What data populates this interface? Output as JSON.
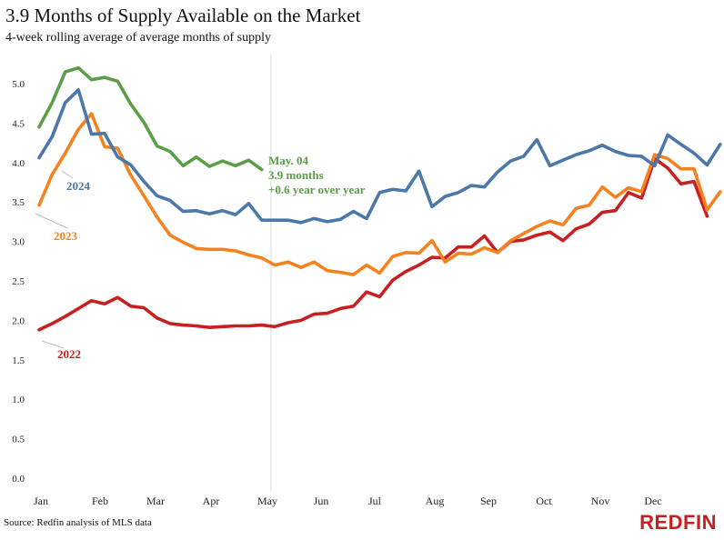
{
  "title": "3.9 Months of Supply Available on the Market",
  "subtitle": "4-week rolling average of average months of supply",
  "source": "Source: Redfin analysis of MLS data",
  "brand": "REDFIN",
  "chart_data": {
    "type": "line",
    "x_tick_labels": [
      "Jan",
      "Feb",
      "Mar",
      "Apr",
      "May",
      "Jun",
      "Jul",
      "Aug",
      "Sep",
      "Oct",
      "Nov",
      "Dec"
    ],
    "y_tick_labels": [
      "0.0",
      "0.5",
      "1.0",
      "1.5",
      "2.0",
      "2.5",
      "3.0",
      "3.5",
      "4.0",
      "4.5",
      "5.0"
    ],
    "ylim": [
      0,
      5.5
    ],
    "xlim": [
      0,
      52
    ],
    "grid": false,
    "reference_line": {
      "x": 17.7
    },
    "annotation": {
      "lines": [
        "May. 04",
        "3.9 months",
        "+0.6 year over year"
      ],
      "color": "#5a9e47"
    },
    "series": [
      {
        "name": "2022",
        "color": "#c82021",
        "label_color": "#c82021",
        "values": [
          1.88,
          1.96,
          2.05,
          2.15,
          2.25,
          2.21,
          2.29,
          2.18,
          2.16,
          2.03,
          1.96,
          1.94,
          1.93,
          1.91,
          1.92,
          1.93,
          1.93,
          1.94,
          1.92,
          1.97,
          2.0,
          2.08,
          2.09,
          2.15,
          2.18,
          2.36,
          2.3,
          2.51,
          2.62,
          2.7,
          2.8,
          2.79,
          2.93,
          2.93,
          3.07,
          2.86,
          3.0,
          3.02,
          3.08,
          3.12,
          3.01,
          3.16,
          3.22,
          3.37,
          3.39,
          3.62,
          3.55,
          4.05,
          3.93,
          3.73,
          3.76,
          3.32
        ]
      },
      {
        "name": "2023",
        "color": "#f58220",
        "label_color": "#f58220",
        "values": [
          3.46,
          3.85,
          4.12,
          4.42,
          4.62,
          4.2,
          4.18,
          3.84,
          3.58,
          3.31,
          3.08,
          2.99,
          2.91,
          2.9,
          2.9,
          2.88,
          2.83,
          2.79,
          2.7,
          2.74,
          2.67,
          2.74,
          2.63,
          2.61,
          2.58,
          2.7,
          2.6,
          2.81,
          2.86,
          2.85,
          3.01,
          2.74,
          2.85,
          2.84,
          2.92,
          2.86,
          3.01,
          3.1,
          3.19,
          3.26,
          3.21,
          3.42,
          3.46,
          3.69,
          3.56,
          3.68,
          3.63,
          4.1,
          4.05,
          3.92,
          3.92,
          3.4,
          3.63
        ]
      },
      {
        "name": "2024",
        "color": "#4b77a9",
        "label_color": "#4b77a9",
        "values": [
          4.06,
          4.33,
          4.76,
          4.92,
          4.36,
          4.37,
          4.07,
          3.97,
          3.76,
          3.58,
          3.52,
          3.38,
          3.39,
          3.35,
          3.39,
          3.34,
          3.48,
          3.27,
          3.27,
          3.27,
          3.24,
          3.29,
          3.25,
          3.28,
          3.38,
          3.29,
          3.62,
          3.66,
          3.64,
          3.89,
          3.44,
          3.57,
          3.62,
          3.71,
          3.69,
          3.88,
          4.02,
          4.08,
          4.29,
          3.96,
          4.03,
          4.1,
          4.15,
          4.22,
          4.14,
          4.09,
          4.08,
          3.96,
          4.35,
          4.23,
          4.12,
          3.97,
          4.23
        ]
      },
      {
        "name": "",
        "color": "#5a9e47",
        "values": [
          4.45,
          4.76,
          5.15,
          5.2,
          5.05,
          5.08,
          5.03,
          4.74,
          4.51,
          4.21,
          4.14,
          3.96,
          4.07,
          3.95,
          4.02,
          3.96,
          4.03,
          3.91
        ]
      }
    ]
  }
}
